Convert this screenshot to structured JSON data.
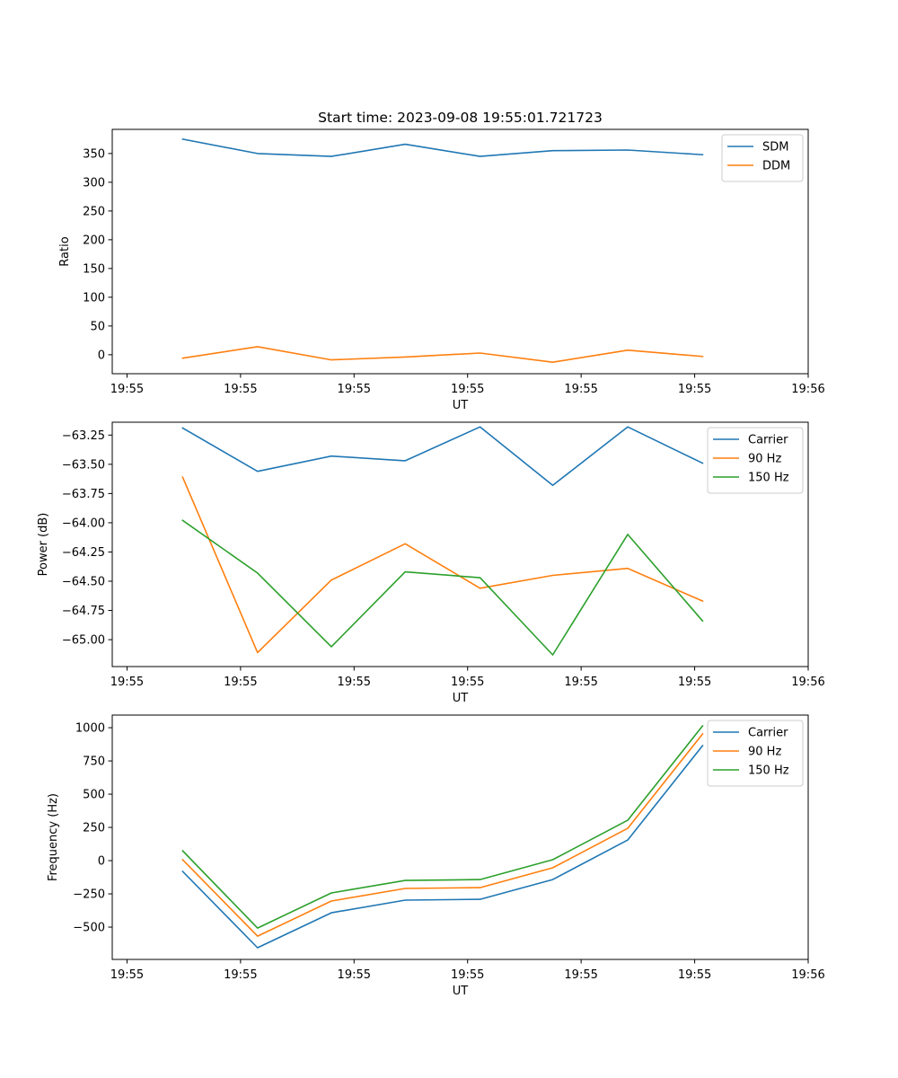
{
  "figure": {
    "title": "Start time: 2023-09-08 19:55:01.721723"
  },
  "chart_data": [
    {
      "type": "line",
      "title": "Start time: 2023-09-08 19:55:01.721723",
      "xlabel": "UT",
      "ylabel": "Ratio",
      "x_units": "seconds after 19:55:00",
      "x": [
        4.9,
        11.5,
        18.0,
        24.5,
        31.1,
        37.5,
        44.1,
        50.7
      ],
      "xlim": [
        -1.3,
        60.0
      ],
      "xticks": [
        0,
        10,
        20,
        30,
        40,
        50,
        60
      ],
      "xtick_labels": [
        "19:55",
        "19:55",
        "19:55",
        "19:55",
        "19:55",
        "19:55",
        "19:56"
      ],
      "ylim": [
        -33,
        392
      ],
      "yticks": [
        0,
        50,
        100,
        150,
        200,
        250,
        300,
        350
      ],
      "ytick_labels": [
        "0",
        "50",
        "100",
        "150",
        "200",
        "250",
        "300",
        "350"
      ],
      "grid": false,
      "legend": "top-right",
      "series": [
        {
          "name": "SDM",
          "color": "#1f77b4",
          "values": [
            375,
            350,
            345,
            366,
            345,
            355,
            356,
            348
          ]
        },
        {
          "name": "DDM",
          "color": "#ff7f0e",
          "values": [
            -6,
            14,
            -9,
            -4,
            3,
            -13,
            8,
            -3
          ]
        }
      ]
    },
    {
      "type": "line",
      "title": "",
      "xlabel": "UT",
      "ylabel": "Power (dB)",
      "x_units": "seconds after 19:55:00",
      "x": [
        4.9,
        11.5,
        18.0,
        24.5,
        31.1,
        37.5,
        44.1,
        50.7
      ],
      "xlim": [
        -1.3,
        60.0
      ],
      "xticks": [
        0,
        10,
        20,
        30,
        40,
        50,
        60
      ],
      "xtick_labels": [
        "19:55",
        "19:55",
        "19:55",
        "19:55",
        "19:55",
        "19:55",
        "19:56"
      ],
      "ylim": [
        -65.23,
        -63.14
      ],
      "yticks": [
        -65.0,
        -64.75,
        -64.5,
        -64.25,
        -64.0,
        -63.75,
        -63.5,
        -63.25
      ],
      "ytick_labels": [
        "−65.00",
        "−64.75",
        "−64.50",
        "−64.25",
        "−64.00",
        "−63.75",
        "−63.50",
        "−63.25"
      ],
      "grid": false,
      "legend": "top-right",
      "series": [
        {
          "name": "Carrier",
          "color": "#1f77b4",
          "values": [
            -63.19,
            -63.56,
            -63.43,
            -63.47,
            -63.18,
            -63.68,
            -63.18,
            -63.49
          ]
        },
        {
          "name": "90 Hz",
          "color": "#ff7f0e",
          "values": [
            -63.61,
            -65.11,
            -64.49,
            -64.18,
            -64.56,
            -64.45,
            -64.39,
            -64.67
          ]
        },
        {
          "name": "150 Hz",
          "color": "#2ca02c",
          "values": [
            -63.98,
            -64.43,
            -65.06,
            -64.42,
            -64.47,
            -65.13,
            -64.1,
            -64.84
          ]
        }
      ]
    },
    {
      "type": "line",
      "title": "",
      "xlabel": "UT",
      "ylabel": "Frequency (Hz)",
      "x_units": "seconds after 19:55:00",
      "x": [
        4.9,
        11.5,
        18.0,
        24.5,
        31.1,
        37.5,
        44.1,
        50.7
      ],
      "xlim": [
        -1.3,
        60.0
      ],
      "xticks": [
        0,
        10,
        20,
        30,
        40,
        50,
        60
      ],
      "xtick_labels": [
        "19:55",
        "19:55",
        "19:55",
        "19:55",
        "19:55",
        "19:55",
        "19:56"
      ],
      "ylim": [
        -743,
        1095
      ],
      "yticks": [
        -500,
        -250,
        0,
        250,
        500,
        750,
        1000
      ],
      "ytick_labels": [
        "−500",
        "−250",
        "0",
        "250",
        "500",
        "750",
        "1000"
      ],
      "grid": false,
      "legend": "top-right",
      "series": [
        {
          "name": "Carrier",
          "color": "#1f77b4",
          "values": [
            -81,
            -655,
            -392,
            -297,
            -291,
            -142,
            155,
            865
          ]
        },
        {
          "name": "90 Hz",
          "color": "#ff7f0e",
          "values": [
            7,
            -568,
            -304,
            -209,
            -203,
            -54,
            243,
            953
          ]
        },
        {
          "name": "150 Hz",
          "color": "#2ca02c",
          "values": [
            74,
            -507,
            -243,
            -149,
            -142,
            7,
            304,
            1014
          ]
        }
      ]
    }
  ]
}
